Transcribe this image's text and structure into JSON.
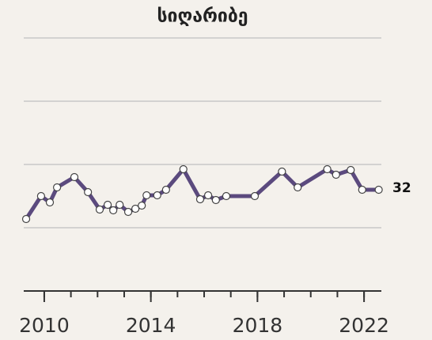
{
  "chart_data": {
    "type": "line",
    "title": "სიღარიბე",
    "x": [
      2009.32,
      2009.88,
      2010.21,
      2010.48,
      2011.13,
      2011.64,
      2012.08,
      2012.38,
      2012.59,
      2012.83,
      2013.15,
      2013.42,
      2013.66,
      2013.84,
      2014.24,
      2014.57,
      2015.22,
      2015.85,
      2016.15,
      2016.44,
      2016.83,
      2017.9,
      2018.92,
      2019.51,
      2020.62,
      2020.95,
      2021.5,
      2021.93,
      2022.55
    ],
    "series": [
      {
        "name": "სიღარიბე",
        "color": "#5b4a7e",
        "values": [
          22.75,
          30,
          28,
          32.75,
          36,
          31.25,
          25.75,
          27.25,
          25.5,
          27.25,
          25,
          26,
          27,
          30.25,
          30.25,
          32,
          38.5,
          29,
          30.25,
          28.75,
          30,
          30,
          37.75,
          32.75,
          38.5,
          36.75,
          38.25,
          32,
          32
        ]
      }
    ],
    "xlim": [
      2009.23,
      2022.65
    ],
    "xticks": [
      2010,
      2014,
      2018,
      2022
    ],
    "xminorticks": [
      2010,
      2011,
      2012,
      2013,
      2014,
      2015,
      2016,
      2017,
      2018,
      2019,
      2020,
      2021,
      2022
    ],
    "ylim": [
      0,
      80
    ],
    "yticks": [
      20,
      40,
      60,
      80
    ],
    "grid": true
  }
}
